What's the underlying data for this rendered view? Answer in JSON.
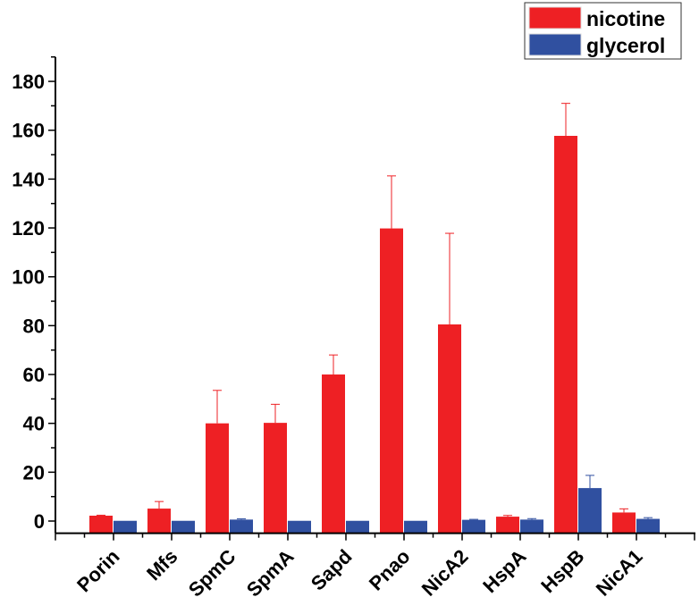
{
  "chart_data": {
    "type": "bar",
    "title": "",
    "xlabel": "",
    "ylabel": "",
    "categories": [
      "Porin",
      "Mfs",
      "SpmC",
      "SpmA",
      "Sapd",
      "Pnao",
      "NicA2",
      "HspA",
      "HspB",
      "NicA1"
    ],
    "series": [
      {
        "name": "nicotine",
        "color": "#ee2024",
        "values": [
          2.2,
          5.1,
          40.0,
          40.2,
          60.0,
          119.8,
          80.5,
          1.8,
          157.7,
          3.5
        ],
        "error_upper": [
          2.4,
          8.0,
          53.5,
          47.8,
          68.0,
          141.3,
          117.8,
          2.3,
          171.0,
          5.0
        ]
      },
      {
        "name": "glycerol",
        "color": "#3050a0",
        "values": [
          0.1,
          0.1,
          0.6,
          0.1,
          0.1,
          0.1,
          0.5,
          0.6,
          13.5,
          0.9
        ],
        "error_upper": [
          0.1,
          0.1,
          0.9,
          0.1,
          0.1,
          0.1,
          0.7,
          1.0,
          18.7,
          1.4
        ]
      }
    ],
    "ylim": [
      -5,
      190
    ],
    "yticks": [
      0,
      20,
      40,
      60,
      80,
      100,
      120,
      140,
      160,
      180
    ],
    "grid": false,
    "legend_position": "top-right"
  }
}
